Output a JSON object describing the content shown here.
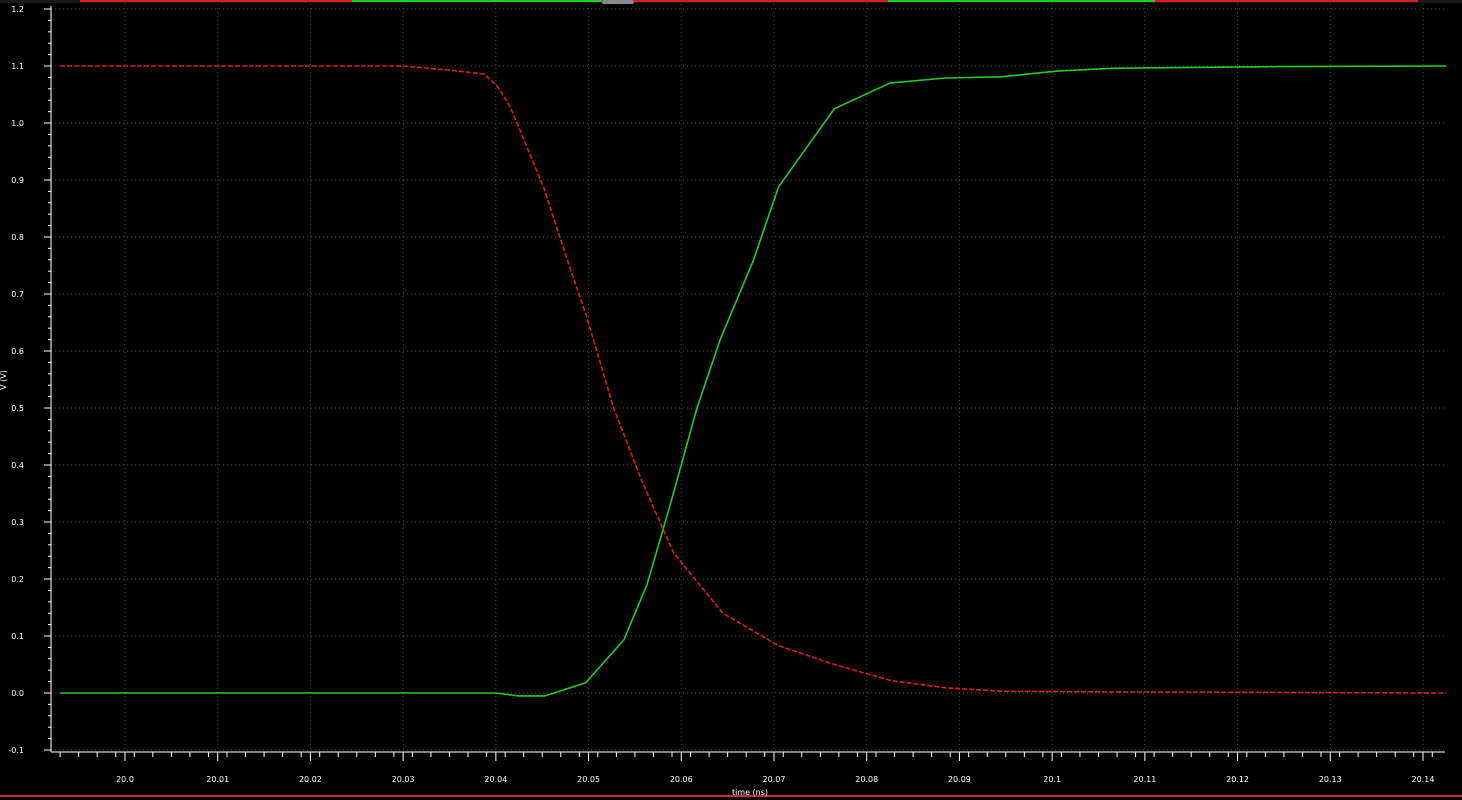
{
  "chart_data": {
    "type": "line",
    "title": "",
    "xlabel": "time (ns)",
    "ylabel": "V (V)",
    "xlim": [
      20.0,
      20.14
    ],
    "ylim": [
      -0.1,
      1.2
    ],
    "grid": true,
    "legend": "none",
    "x_ticks": [
      "20.0",
      "20.01",
      "20.02",
      "20.03",
      "20.04",
      "20.05",
      "20.06",
      "20.07",
      "20.08",
      "20.09",
      "20.1",
      "20.11",
      "20.12",
      "20.13",
      "20.14"
    ],
    "y_ticks": [
      "-0.1",
      "0.0",
      "0.1",
      "0.2",
      "0.3",
      "0.4",
      "0.5",
      "0.6",
      "0.7",
      "0.8",
      "0.9",
      "1.0",
      "1.1",
      "1.2"
    ],
    "series": [
      {
        "color": "#dd1c1c",
        "dash": true,
        "points": [
          [
            19.993,
            1.1
          ],
          [
            20.03,
            1.1
          ],
          [
            20.0355,
            1.092
          ],
          [
            20.0387,
            1.086
          ],
          [
            20.0401,
            1.066
          ],
          [
            20.0415,
            1.03
          ],
          [
            20.0428,
            0.98
          ],
          [
            20.0452,
            0.885
          ],
          [
            20.0475,
            0.77
          ],
          [
            20.0498,
            0.66
          ],
          [
            20.0527,
            0.5
          ],
          [
            20.0558,
            0.37
          ],
          [
            20.0592,
            0.245
          ],
          [
            20.0645,
            0.14
          ],
          [
            20.0705,
            0.083
          ],
          [
            20.0765,
            0.05
          ],
          [
            20.0826,
            0.022
          ],
          [
            20.0886,
            0.009
          ],
          [
            20.0948,
            0.003
          ],
          [
            20.1062,
            0.002
          ],
          [
            20.1242,
            0.001
          ],
          [
            20.1425,
            0.0
          ]
        ]
      },
      {
        "color": "#22cc22",
        "dash": false,
        "points": [
          [
            19.993,
            0.0
          ],
          [
            20.0375,
            0.0
          ],
          [
            20.04,
            0.0
          ],
          [
            20.0425,
            -0.005
          ],
          [
            20.0453,
            -0.005
          ],
          [
            20.0497,
            0.018
          ],
          [
            20.0538,
            0.093
          ],
          [
            20.0563,
            0.19
          ],
          [
            20.0588,
            0.33
          ],
          [
            20.0617,
            0.5
          ],
          [
            20.0642,
            0.62
          ],
          [
            20.0678,
            0.76
          ],
          [
            20.0705,
            0.888
          ],
          [
            20.0765,
            1.025
          ],
          [
            20.0825,
            1.07
          ],
          [
            20.0885,
            1.079
          ],
          [
            20.0945,
            1.081
          ],
          [
            20.1005,
            1.091
          ],
          [
            20.1065,
            1.096
          ],
          [
            20.1125,
            1.097
          ],
          [
            20.1245,
            1.099
          ],
          [
            20.1425,
            1.1
          ]
        ]
      }
    ]
  }
}
